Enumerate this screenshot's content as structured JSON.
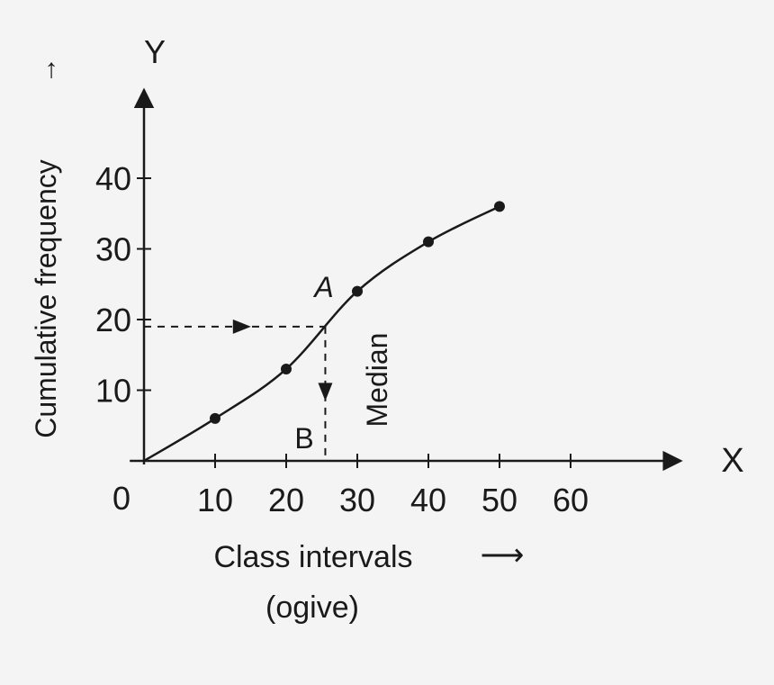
{
  "colors": {
    "ink": "#1a1a1a",
    "background": "#f4f4f4"
  },
  "chart_data": {
    "type": "line",
    "title": "",
    "xlabel": "Class intervals",
    "xlabel_arrow": "⟶",
    "subtitle": "(ogive)",
    "ylabel": "Cumulative frequency",
    "ylabel_arrow": "→",
    "x_axis_letter": "X",
    "y_axis_letter": "Y",
    "origin_label": "0",
    "xlim": [
      0,
      75
    ],
    "ylim": [
      0,
      52
    ],
    "x_ticks": [
      10,
      20,
      30,
      40,
      50,
      60
    ],
    "x_tick_labels": [
      "10",
      "20",
      "30",
      "40",
      "50",
      "60"
    ],
    "y_ticks": [
      10,
      20,
      30,
      40
    ],
    "y_tick_labels": [
      "10",
      "20",
      "30",
      "40"
    ],
    "grid": false,
    "series": [
      {
        "values": [
          {
            "x": 0,
            "y": 0
          },
          {
            "x": 10,
            "y": 6
          },
          {
            "x": 20,
            "y": 13
          },
          {
            "x": 30,
            "y": 24
          },
          {
            "x": 40,
            "y": 31
          },
          {
            "x": 50,
            "y": 36
          }
        ]
      }
    ],
    "median": {
      "x": 25.5,
      "y": 19
    },
    "annotations": {
      "point_a": "A",
      "point_b": "B",
      "median_label": "Median"
    }
  }
}
